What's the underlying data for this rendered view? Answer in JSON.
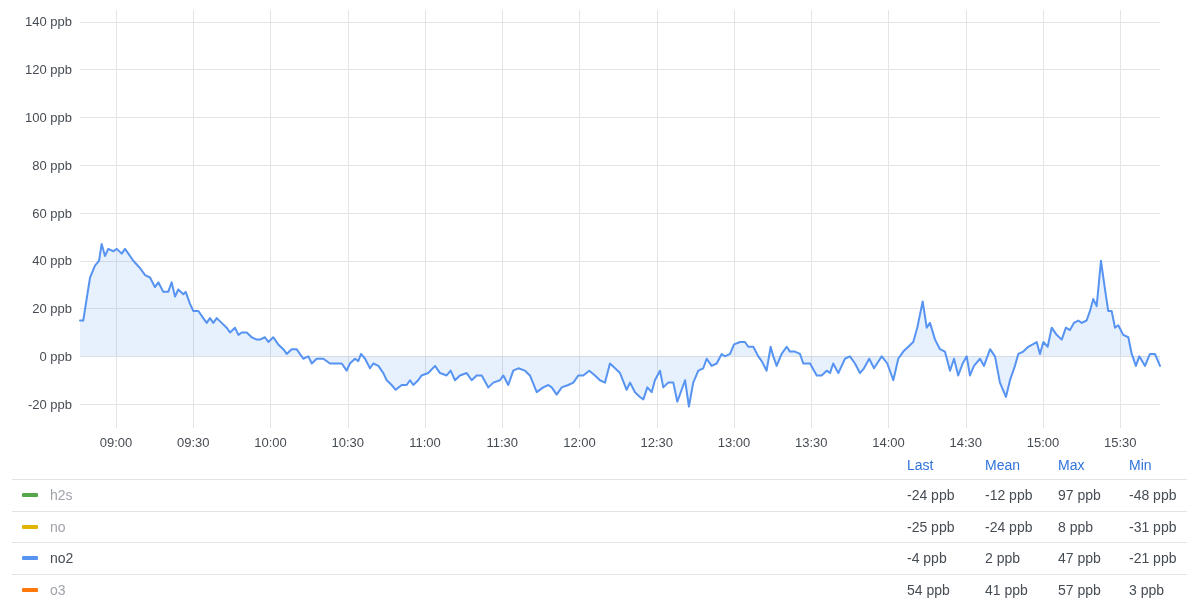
{
  "chart_data": {
    "type": "area",
    "xlim": [
      8.767,
      15.757
    ],
    "ylim": [
      -30,
      145
    ],
    "xticks": [
      {
        "value": 9,
        "label": "09:00"
      },
      {
        "value": 9.5,
        "label": "09:30"
      },
      {
        "value": 10,
        "label": "10:00"
      },
      {
        "value": 10.5,
        "label": "10:30"
      },
      {
        "value": 11,
        "label": "11:00"
      },
      {
        "value": 11.5,
        "label": "11:30"
      },
      {
        "value": 12,
        "label": "12:00"
      },
      {
        "value": 12.5,
        "label": "12:30"
      },
      {
        "value": 13,
        "label": "13:00"
      },
      {
        "value": 13.5,
        "label": "13:30"
      },
      {
        "value": 14,
        "label": "14:00"
      },
      {
        "value": 14.5,
        "label": "14:30"
      },
      {
        "value": 15,
        "label": "15:00"
      },
      {
        "value": 15.5,
        "label": "15:30"
      }
    ],
    "yticks": [
      {
        "value": -20,
        "label": "-20 ppb"
      },
      {
        "value": 0,
        "label": "0 ppb"
      },
      {
        "value": 20,
        "label": "20 ppb"
      },
      {
        "value": 40,
        "label": "40 ppb"
      },
      {
        "value": 60,
        "label": "60 ppb"
      },
      {
        "value": 80,
        "label": "80 ppb"
      },
      {
        "value": 100,
        "label": "100 ppb"
      },
      {
        "value": 120,
        "label": "120 ppb"
      },
      {
        "value": 140,
        "label": "140 ppb"
      }
    ],
    "grid": true,
    "legend": "bottom",
    "annotations": [
      "Last",
      "Mean",
      "Max",
      "Min",
      "-24 ppb",
      "-12 ppb",
      "97 ppb",
      "-48 ppb",
      "-25 ppb",
      "-24 ppb",
      "8 ppb",
      "-31 ppb",
      "-4 ppb",
      "2 ppb",
      "47 ppb",
      "-21 ppb",
      "54 ppb",
      "41 ppb",
      "57 ppb",
      "3 ppb"
    ],
    "series": [
      {
        "name": "h2s",
        "color": "#56a64b"
      },
      {
        "name": "no",
        "color": "#e0b400"
      },
      {
        "name": "no2",
        "color": "#5794f2",
        "x": [
          8.767,
          8.788,
          8.81,
          8.832,
          8.864,
          8.89,
          8.907,
          8.929,
          8.95,
          8.983,
          9.005,
          9.037,
          9.058,
          9.08,
          9.112,
          9.155,
          9.188,
          9.22,
          9.252,
          9.274,
          9.306,
          9.338,
          9.36,
          9.382,
          9.403,
          9.436,
          9.451,
          9.479,
          9.5,
          9.533,
          9.565,
          9.587,
          9.608,
          9.63,
          9.652,
          9.684,
          9.716,
          9.738,
          9.77,
          9.792,
          9.814,
          9.846,
          9.878,
          9.911,
          9.932,
          9.964,
          9.986,
          10.018,
          10.05,
          10.083,
          10.105,
          10.137,
          10.169,
          10.212,
          10.245,
          10.267,
          10.299,
          10.342,
          10.385,
          10.417,
          10.461,
          10.493,
          10.514,
          10.547,
          10.568,
          10.586,
          10.612,
          10.644,
          10.665,
          10.698,
          10.73,
          10.752,
          10.784,
          10.81,
          10.849,
          10.881,
          10.903,
          10.924,
          10.956,
          10.978,
          11.021,
          11.065,
          11.097,
          11.14,
          11.166,
          11.194,
          11.226,
          11.27,
          11.302,
          11.334,
          11.367,
          11.41,
          11.442,
          11.485,
          11.507,
          11.539,
          11.571,
          11.604,
          11.647,
          11.679,
          11.723,
          11.765,
          11.798,
          11.82,
          11.852,
          11.885,
          11.927,
          11.96,
          11.992,
          12.024,
          12.063,
          12.1,
          12.132,
          12.165,
          12.197,
          12.23,
          12.262,
          12.305,
          12.327,
          12.359,
          12.391,
          12.413,
          12.439,
          12.467,
          12.488,
          12.521,
          12.542,
          12.574,
          12.607,
          12.633,
          12.661,
          12.683,
          12.708,
          12.736,
          12.769,
          12.801,
          12.823,
          12.855,
          12.888,
          12.92,
          12.941,
          12.974,
          13.0,
          13.039,
          13.071,
          13.092,
          13.125,
          13.157,
          13.179,
          13.211,
          13.237,
          13.254,
          13.276,
          13.308,
          13.341,
          13.362,
          13.394,
          13.427,
          13.448,
          13.492,
          13.535,
          13.567,
          13.6,
          13.621,
          13.642,
          13.675,
          13.718,
          13.75,
          13.783,
          13.815,
          13.841,
          13.875,
          13.906,
          13.956,
          13.992,
          14.031,
          14.063,
          14.095,
          14.128,
          14.16,
          14.186,
          14.221,
          14.247,
          14.268,
          14.301,
          14.333,
          14.365,
          14.398,
          14.424,
          14.451,
          14.48,
          14.506,
          14.527,
          14.553,
          14.592,
          14.618,
          14.657,
          14.689,
          14.721,
          14.76,
          14.786,
          14.818,
          14.84,
          14.872,
          14.904,
          14.959,
          14.98,
          15.002,
          15.03,
          15.056,
          15.088,
          15.121,
          15.148,
          15.174,
          15.2,
          15.228,
          15.25,
          15.282,
          15.304,
          15.325,
          15.347,
          15.375,
          15.401,
          15.422,
          15.444,
          15.466,
          15.487,
          15.519,
          15.552,
          15.574,
          15.601,
          15.623,
          15.66,
          15.692,
          15.724,
          15.757
        ],
        "values": [
          15,
          15,
          24,
          33,
          38,
          40,
          47,
          42,
          45,
          44,
          45,
          43,
          45,
          43,
          40,
          37,
          34,
          33,
          29,
          31,
          27,
          27,
          31,
          25,
          28,
          26,
          27,
          22,
          19,
          19,
          16,
          14,
          16,
          14,
          16,
          14,
          12,
          10,
          12,
          9,
          10,
          10,
          8,
          7,
          7,
          8,
          6,
          8,
          5,
          3,
          1,
          3,
          3,
          -1,
          0,
          -3,
          -1,
          -1,
          -3,
          -3,
          -3,
          -6,
          -3,
          -1,
          -2,
          1,
          -1,
          -5,
          -3,
          -4,
          -7,
          -10,
          -12,
          -14,
          -12,
          -12,
          -10,
          -12,
          -10,
          -8,
          -7,
          -4,
          -7,
          -8,
          -6,
          -10,
          -8,
          -7,
          -10,
          -8,
          -8,
          -13,
          -11,
          -10,
          -8,
          -12,
          -6,
          -5,
          -6,
          -8,
          -15,
          -13,
          -12,
          -13,
          -16,
          -13,
          -12,
          -11,
          -8,
          -8,
          -6,
          -8,
          -10,
          -11,
          -3,
          -5,
          -7,
          -14,
          -11,
          -15,
          -17,
          -18,
          -13,
          -15,
          -10,
          -6,
          -13,
          -11,
          -11,
          -19,
          -14,
          -10,
          -21,
          -11,
          -6,
          -5,
          -1,
          -4,
          -3,
          1,
          0,
          1,
          5,
          6,
          6,
          4,
          4,
          0,
          -2,
          -6,
          4,
          0,
          -4,
          1,
          4,
          2,
          2,
          1,
          -3,
          -3,
          -8,
          -8,
          -6,
          -7,
          -3,
          -7,
          -1,
          0,
          -3,
          -7,
          -5,
          -1,
          -5,
          0,
          -3,
          -10,
          -1,
          2,
          4,
          6,
          12,
          23,
          12,
          14,
          7,
          3,
          2,
          -6,
          -1,
          -8,
          -3,
          0,
          -8,
          -4,
          -1,
          -4,
          3,
          0,
          -11,
          -17,
          -10,
          -4,
          1,
          2,
          4,
          6,
          1,
          6,
          4,
          12,
          9,
          7,
          12,
          11,
          14,
          15,
          14,
          15,
          19,
          24,
          21,
          40,
          28,
          19,
          19,
          12,
          13,
          9,
          8,
          1,
          -4,
          0,
          -4,
          1,
          1,
          -4
        ]
      },
      {
        "name": "o3",
        "color": "#ff780a"
      }
    ]
  }
}
